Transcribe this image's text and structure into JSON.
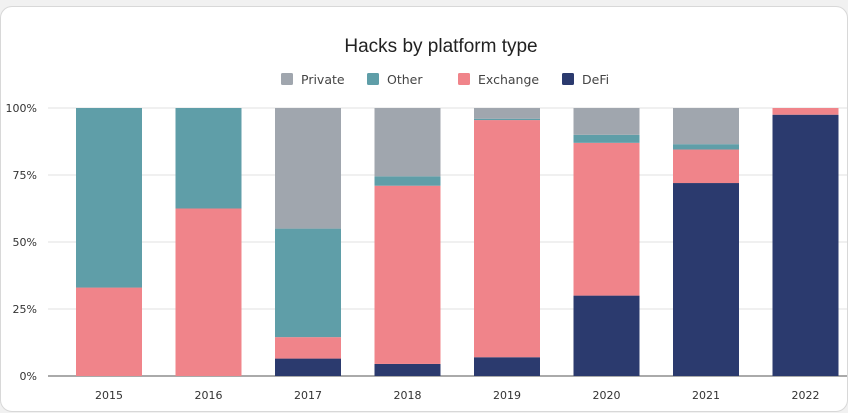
{
  "chart_data": {
    "type": "bar",
    "stacked": true,
    "title": "Hacks by platform type",
    "xlabel": "",
    "ylabel": "",
    "ylim": [
      0,
      100
    ],
    "yticks": [
      "0%",
      "25%",
      "50%",
      "75%",
      "100%"
    ],
    "legend": "top",
    "grid": true,
    "categories": [
      "2015",
      "2016",
      "2017",
      "2018",
      "2019",
      "2020",
      "2021",
      "2022"
    ],
    "series": [
      {
        "name": "DeFi",
        "color": "#2b3a6e",
        "values": [
          0,
          0,
          6.5,
          4.5,
          7,
          30,
          72,
          97.5
        ]
      },
      {
        "name": "Exchange",
        "color": "#f0848a",
        "values": [
          33,
          62.5,
          8,
          66.5,
          88.5,
          57,
          12.5,
          2.5
        ]
      },
      {
        "name": "Other",
        "color": "#5f9ea8",
        "values": [
          67,
          37.5,
          40.5,
          3.5,
          0.5,
          3,
          2,
          0
        ]
      },
      {
        "name": "Private",
        "color": "#a0a6ae",
        "values": [
          0,
          0,
          45,
          25.5,
          4,
          10,
          13.5,
          0
        ]
      }
    ],
    "legend_order": [
      "Private",
      "Other",
      "Exchange",
      "DeFi"
    ]
  }
}
